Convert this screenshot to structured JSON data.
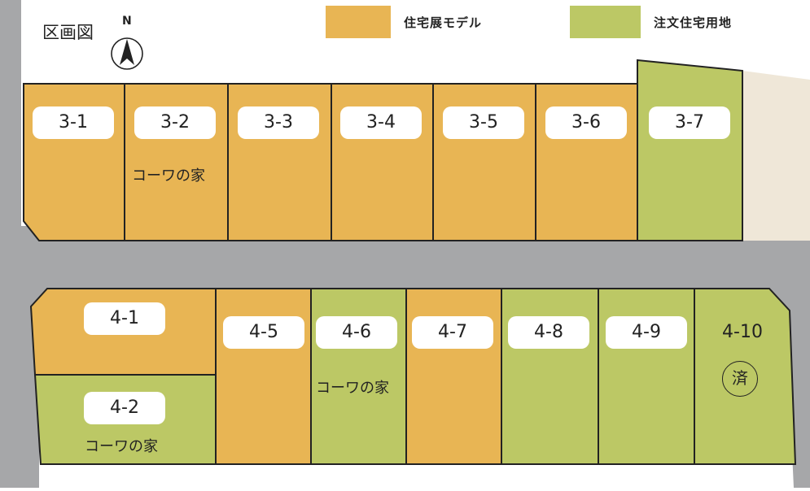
{
  "title": "区画図",
  "compass": {
    "label": "N"
  },
  "colors": {
    "model": "#E8B554",
    "custom": "#BCC865",
    "road": "#A6A7A9",
    "neighbor": "#EFE7D8",
    "outline": "#222222"
  },
  "legend": [
    {
      "label": "住宅展モデル",
      "category": "model"
    },
    {
      "label": "注文住宅用地",
      "category": "custom"
    }
  ],
  "lots": [
    {
      "id": "3-1",
      "category": "model"
    },
    {
      "id": "3-2",
      "category": "model",
      "note": "コーワの家"
    },
    {
      "id": "3-3",
      "category": "model"
    },
    {
      "id": "3-4",
      "category": "model"
    },
    {
      "id": "3-5",
      "category": "model"
    },
    {
      "id": "3-6",
      "category": "model"
    },
    {
      "id": "3-7",
      "category": "custom"
    },
    {
      "id": "4-1",
      "category": "model"
    },
    {
      "id": "4-2",
      "category": "custom",
      "note": "コーワの家"
    },
    {
      "id": "4-5",
      "category": "model"
    },
    {
      "id": "4-6",
      "category": "custom",
      "note": "コーワの家"
    },
    {
      "id": "4-7",
      "category": "model"
    },
    {
      "id": "4-8",
      "category": "custom"
    },
    {
      "id": "4-9",
      "category": "custom"
    },
    {
      "id": "4-10",
      "category": "custom",
      "status": "済"
    }
  ]
}
